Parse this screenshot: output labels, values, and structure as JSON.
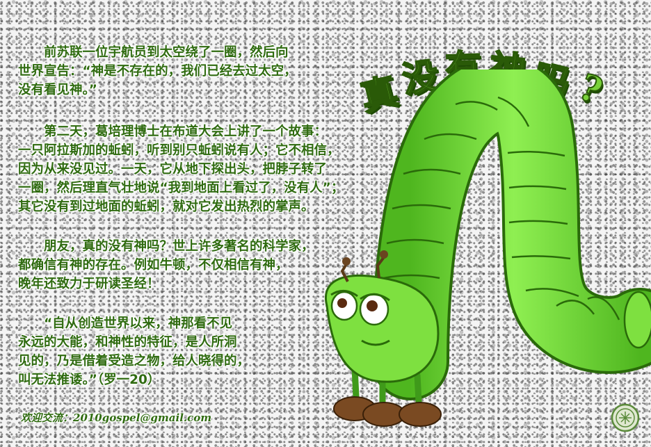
{
  "headline": {
    "chars": [
      "真",
      "没",
      "有",
      "神",
      "吗",
      "?"
    ]
  },
  "paragraphs": [
    {
      "lines": [
        "　　前苏联一位宇航员到太空绕了一圈，然后向",
        "世界宣告：“神是不存在的，我们已经去过太空，",
        "没有看见神。”"
      ]
    },
    {
      "lines": [
        "　　第二天，葛培理博士在布道大会上讲了一个故事：",
        "一只阿拉斯加的蚯蚓，听到别只蚯蚓说有人；它不相信，",
        "因为从来没见过。一天，它从地下探出头，把脖子转了",
        "一圈，然后理直气壮地说“我到地面上看过了，没有人”；",
        "其它没有到过地面的蚯蚓，就对它发出热烈的掌声。"
      ]
    },
    {
      "lines": [
        "　　朋友，真的没有神吗？世上许多著名的科学家，",
        "都确信有神的存在。例如牛顿，不仅相信有神，",
        "晚年还致力于研读圣经！"
      ]
    },
    {
      "lines": [
        "　　“自从创造世界以来，神那看不见",
        "永远的大能，和神性的特征，是人所洞",
        "见的，乃是借着受造之物，给人晓得的，",
        "叫无法推诿。”（罗一20）"
      ]
    }
  ],
  "footer": {
    "text": "欢迎交流：2010gospel@gmail.com"
  },
  "colors": {
    "text_green": "#2f6b10",
    "worm_green": "#7ee040",
    "worm_dark": "#3f9a1a",
    "boot_brown": "#7a4a22"
  },
  "icons": {
    "seal": "round-emblem-icon",
    "worm": "worm-illustration"
  }
}
